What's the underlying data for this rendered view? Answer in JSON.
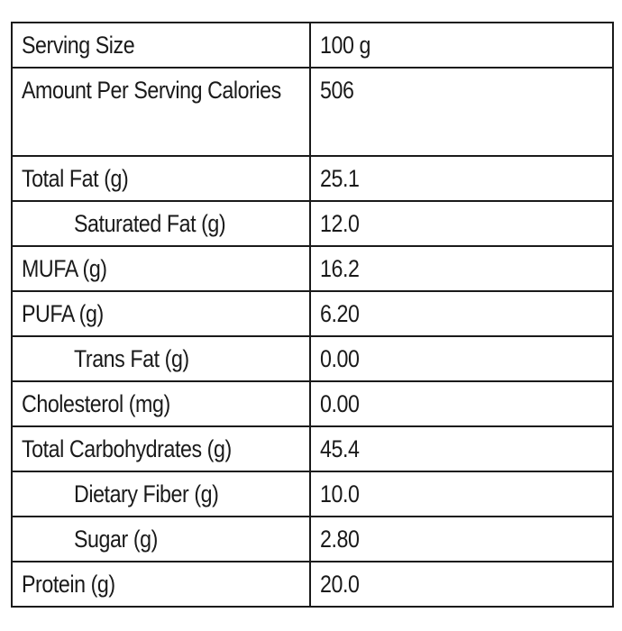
{
  "table": {
    "rows": [
      {
        "label": "Serving Size",
        "value": "100 g",
        "indent": false
      },
      {
        "label": "Amount Per Serving Calories",
        "value": "506",
        "indent": false
      },
      {
        "label": "Total Fat (g)",
        "value": "25.1",
        "indent": false
      },
      {
        "label": "Saturated Fat (g)",
        "value": "12.0",
        "indent": true
      },
      {
        "label": "MUFA (g)",
        "value": "16.2",
        "indent": false
      },
      {
        "label": "PUFA (g)",
        "value": "6.20",
        "indent": false
      },
      {
        "label": "Trans Fat (g)",
        "value": "0.00",
        "indent": true
      },
      {
        "label": "Cholesterol (mg)",
        "value": "0.00",
        "indent": false
      },
      {
        "label": "Total Carbohydrates (g)",
        "value": "45.4",
        "indent": false
      },
      {
        "label": "Dietary Fiber (g)",
        "value": "10.0",
        "indent": true
      },
      {
        "label": "Sugar (g)",
        "value": "2.80",
        "indent": true
      },
      {
        "label": "Protein (g)",
        "value": "20.0",
        "indent": false
      }
    ]
  }
}
